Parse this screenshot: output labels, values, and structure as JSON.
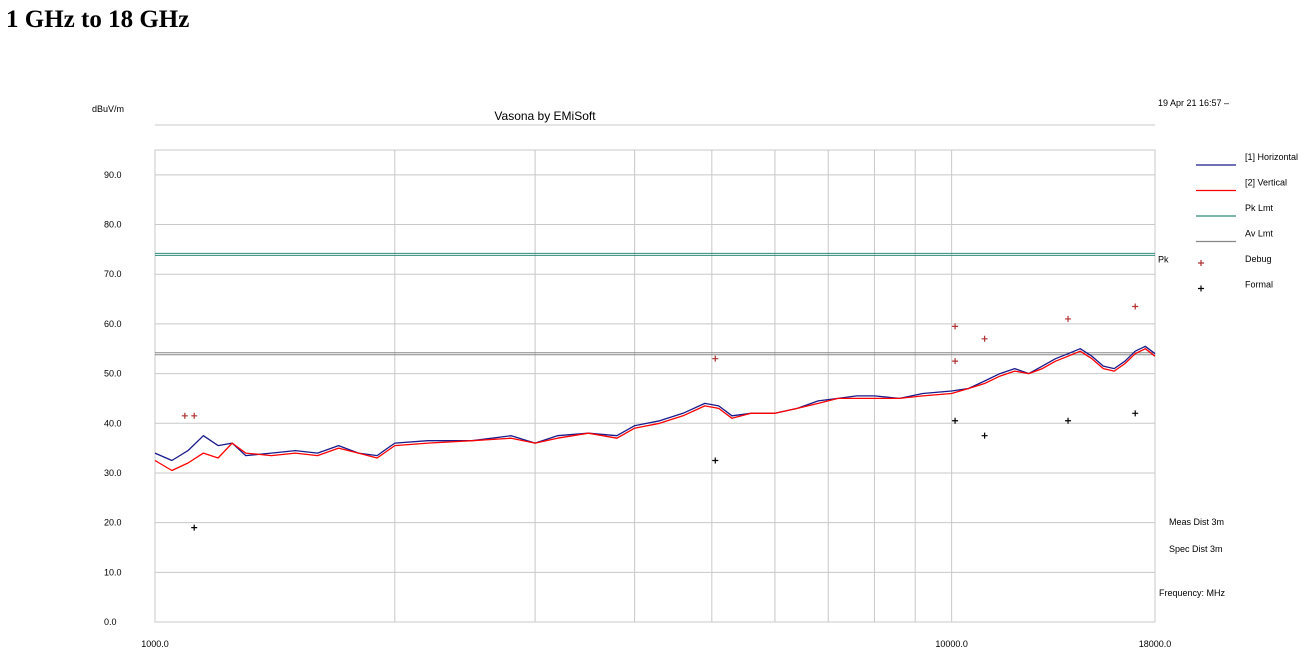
{
  "page": {
    "heading": "1 GHz to 18 GHz"
  },
  "chart_data": {
    "type": "line",
    "title": "Vasona by EMiSoft",
    "timestamp": "19 Apr 21 16:57 –",
    "ylabel": "dBuV/m",
    "xlabel": "Frequency: MHz",
    "xscale": "log",
    "xlim": [
      1000,
      18000
    ],
    "ylim": [
      0,
      95
    ],
    "x_tick_labels": [
      {
        "value": 1000,
        "label": "1000.0"
      },
      {
        "value": 10000,
        "label": "10000.0"
      },
      {
        "value": 18000,
        "label": "18000.0"
      }
    ],
    "x_gridlines": [
      2000,
      3000,
      4000,
      5000,
      6000,
      7000,
      8000,
      9000,
      10000
    ],
    "y_ticks": [
      0,
      10,
      20,
      30,
      40,
      50,
      60,
      70,
      80,
      90
    ],
    "y_tick_labels": [
      "0.0",
      "10.0",
      "20.0",
      "30.0",
      "40.0",
      "50.0",
      "60.0",
      "70.0",
      "80.0",
      "90.0"
    ],
    "grid": true,
    "legend_position": "right",
    "legend": [
      {
        "label": "[1] Horizontal",
        "kind": "line",
        "color": "#1a1a8c"
      },
      {
        "label": "[2] Vertical",
        "kind": "line",
        "color": "#ff0000"
      },
      {
        "label": "Pk Lmt",
        "kind": "line",
        "color": "#2e8b7a"
      },
      {
        "label": "Av Lmt",
        "kind": "line",
        "color": "#888888"
      },
      {
        "label": "Debug",
        "kind": "marker",
        "color": "#b03030"
      },
      {
        "label": "Formal",
        "kind": "marker",
        "color": "#000000"
      }
    ],
    "limits": {
      "pk": {
        "value": 74,
        "label": "Pk",
        "color": "#2e8b7a"
      },
      "av": {
        "value": 54,
        "color": "#888888"
      }
    },
    "series": [
      {
        "name": "[1] Horizontal",
        "color": "#1a1a8c",
        "points": [
          [
            1000,
            34
          ],
          [
            1050,
            32.5
          ],
          [
            1100,
            34.5
          ],
          [
            1150,
            37.5
          ],
          [
            1200,
            35.5
          ],
          [
            1250,
            36
          ],
          [
            1300,
            33.5
          ],
          [
            1400,
            34
          ],
          [
            1500,
            34.5
          ],
          [
            1600,
            34
          ],
          [
            1700,
            35.5
          ],
          [
            1800,
            34
          ],
          [
            1900,
            33.5
          ],
          [
            2000,
            36
          ],
          [
            2200,
            36.5
          ],
          [
            2500,
            36.5
          ],
          [
            2800,
            37.5
          ],
          [
            3000,
            36
          ],
          [
            3200,
            37.5
          ],
          [
            3500,
            38
          ],
          [
            3800,
            37.5
          ],
          [
            4000,
            39.5
          ],
          [
            4300,
            40.5
          ],
          [
            4600,
            42
          ],
          [
            4900,
            44
          ],
          [
            5100,
            43.5
          ],
          [
            5300,
            41.5
          ],
          [
            5600,
            42
          ],
          [
            6000,
            42
          ],
          [
            6400,
            43
          ],
          [
            6800,
            44.5
          ],
          [
            7200,
            45
          ],
          [
            7600,
            45.5
          ],
          [
            8000,
            45.5
          ],
          [
            8600,
            45
          ],
          [
            9200,
            46
          ],
          [
            10000,
            46.5
          ],
          [
            10500,
            47
          ],
          [
            11000,
            48.5
          ],
          [
            11500,
            50
          ],
          [
            12000,
            51
          ],
          [
            12500,
            50
          ],
          [
            13000,
            51.5
          ],
          [
            13500,
            53
          ],
          [
            14000,
            54
          ],
          [
            14500,
            55
          ],
          [
            15000,
            53.5
          ],
          [
            15500,
            51.5
          ],
          [
            16000,
            51
          ],
          [
            16500,
            52.5
          ],
          [
            17000,
            54.5
          ],
          [
            17500,
            55.5
          ],
          [
            18000,
            54
          ]
        ]
      },
      {
        "name": "[2] Vertical",
        "color": "#ff0000",
        "points": [
          [
            1000,
            32.5
          ],
          [
            1050,
            30.5
          ],
          [
            1100,
            32
          ],
          [
            1150,
            34
          ],
          [
            1200,
            33
          ],
          [
            1250,
            36
          ],
          [
            1300,
            34
          ],
          [
            1400,
            33.5
          ],
          [
            1500,
            34
          ],
          [
            1600,
            33.5
          ],
          [
            1700,
            35
          ],
          [
            1800,
            34
          ],
          [
            1900,
            33
          ],
          [
            2000,
            35.5
          ],
          [
            2200,
            36
          ],
          [
            2500,
            36.5
          ],
          [
            2800,
            37
          ],
          [
            3000,
            36
          ],
          [
            3200,
            37
          ],
          [
            3500,
            38
          ],
          [
            3800,
            37
          ],
          [
            4000,
            39
          ],
          [
            4300,
            40
          ],
          [
            4600,
            41.5
          ],
          [
            4900,
            43.5
          ],
          [
            5100,
            43
          ],
          [
            5300,
            41
          ],
          [
            5600,
            42
          ],
          [
            6000,
            42
          ],
          [
            6400,
            43
          ],
          [
            6800,
            44
          ],
          [
            7200,
            45
          ],
          [
            7600,
            45
          ],
          [
            8000,
            45
          ],
          [
            8600,
            45
          ],
          [
            9200,
            45.5
          ],
          [
            10000,
            46
          ],
          [
            10500,
            47
          ],
          [
            11000,
            48
          ],
          [
            11500,
            49.5
          ],
          [
            12000,
            50.5
          ],
          [
            12500,
            50
          ],
          [
            13000,
            51
          ],
          [
            13500,
            52.5
          ],
          [
            14000,
            53.5
          ],
          [
            14500,
            54.5
          ],
          [
            15000,
            53
          ],
          [
            15500,
            51
          ],
          [
            16000,
            50.5
          ],
          [
            16500,
            52
          ],
          [
            17000,
            54
          ],
          [
            17500,
            55
          ],
          [
            18000,
            53.5
          ]
        ]
      }
    ],
    "markers": {
      "debug": [
        [
          1090,
          41.5
        ],
        [
          1120,
          41.5
        ],
        [
          5050,
          53
        ],
        [
          10100,
          59.5
        ],
        [
          10100,
          52.5
        ],
        [
          11000,
          57
        ],
        [
          14000,
          61
        ],
        [
          17000,
          63.5
        ]
      ],
      "formal": [
        [
          1120,
          19
        ],
        [
          5050,
          32.5
        ],
        [
          10100,
          40.5
        ],
        [
          11000,
          37.5
        ],
        [
          14000,
          40.5
        ],
        [
          17000,
          42
        ]
      ]
    },
    "annotations": {
      "meas_dist": "Meas Dist 3m",
      "spec_dist": "Spec Dist 3m"
    }
  }
}
